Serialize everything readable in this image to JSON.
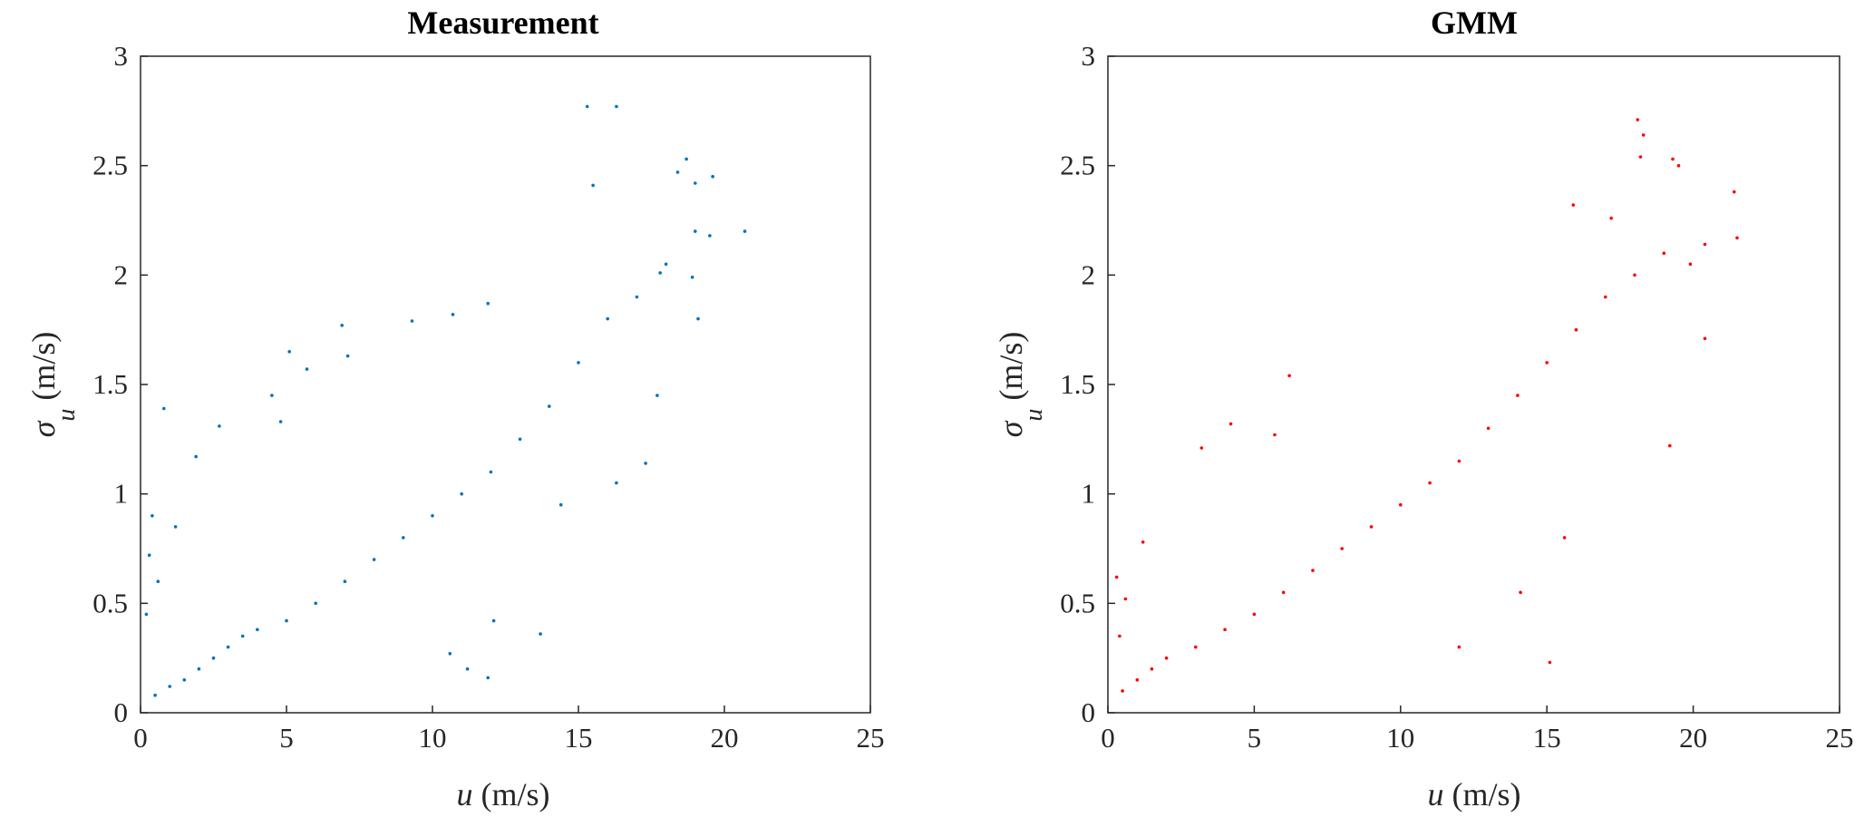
{
  "chart_data": [
    {
      "type": "scatter",
      "title": "Measurement",
      "xlabel": {
        "var": "u",
        "unit": " (m/s)"
      },
      "ylabel": {
        "var": "σ",
        "sub": "u",
        "unit": " (m/s)"
      },
      "xlim": [
        0,
        25
      ],
      "ylim": [
        0,
        3
      ],
      "xticks": [
        "0",
        "5",
        "10",
        "15",
        "20",
        "25"
      ],
      "yticks": [
        "0",
        "0.5",
        "1",
        "1.5",
        "2",
        "2.5",
        "3"
      ],
      "grid": false,
      "color": "#0072BD",
      "series": [
        {
          "points": [
            [
              0.5,
              0.08
            ],
            [
              1.0,
              0.12
            ],
            [
              1.5,
              0.15
            ],
            [
              2.0,
              0.2
            ],
            [
              2.5,
              0.25
            ],
            [
              3.0,
              0.3
            ],
            [
              3.5,
              0.35
            ],
            [
              4.0,
              0.38
            ],
            [
              5.0,
              0.42
            ],
            [
              6.0,
              0.5
            ],
            [
              7.0,
              0.6
            ],
            [
              8.0,
              0.7
            ],
            [
              9.0,
              0.8
            ],
            [
              10.0,
              0.9
            ],
            [
              11.0,
              1.0
            ],
            [
              12.0,
              1.1
            ],
            [
              13.0,
              1.25
            ],
            [
              14.0,
              1.4
            ],
            [
              15.0,
              1.6
            ],
            [
              16.0,
              1.8
            ],
            [
              17.0,
              1.9
            ],
            [
              18.0,
              2.05
            ],
            [
              19.0,
              2.2
            ],
            [
              0.8,
              1.39
            ],
            [
              2.7,
              1.31
            ],
            [
              4.5,
              1.45
            ],
            [
              5.1,
              1.65
            ],
            [
              5.7,
              1.57
            ],
            [
              7.1,
              1.63
            ],
            [
              6.9,
              1.77
            ],
            [
              9.3,
              1.79
            ],
            [
              10.7,
              1.82
            ],
            [
              11.9,
              1.87
            ],
            [
              4.8,
              1.33
            ],
            [
              1.9,
              1.17
            ],
            [
              15.3,
              2.77
            ],
            [
              16.3,
              2.77
            ],
            [
              15.5,
              2.41
            ],
            [
              18.4,
              2.47
            ],
            [
              18.7,
              2.53
            ],
            [
              19.0,
              2.42
            ],
            [
              19.6,
              2.45
            ],
            [
              20.7,
              2.2
            ],
            [
              19.5,
              2.18
            ],
            [
              17.8,
              2.01
            ],
            [
              18.9,
              1.99
            ],
            [
              13.7,
              0.36
            ],
            [
              11.2,
              0.2
            ],
            [
              11.9,
              0.16
            ],
            [
              10.6,
              0.27
            ],
            [
              12.1,
              0.42
            ],
            [
              14.4,
              0.95
            ],
            [
              16.3,
              1.05
            ],
            [
              17.3,
              1.14
            ],
            [
              17.7,
              1.45
            ],
            [
              19.1,
              1.8
            ],
            [
              0.3,
              0.72
            ],
            [
              0.6,
              0.6
            ],
            [
              0.4,
              0.9
            ],
            [
              1.2,
              0.85
            ],
            [
              0.2,
              0.45
            ]
          ]
        }
      ]
    },
    {
      "type": "scatter",
      "title": "GMM",
      "xlabel": {
        "var": "u",
        "unit": " (m/s)"
      },
      "ylabel": {
        "var": "σ",
        "sub": "u",
        "unit": " (m/s)"
      },
      "xlim": [
        0,
        25
      ],
      "ylim": [
        0,
        3
      ],
      "xticks": [
        "0",
        "5",
        "10",
        "15",
        "20",
        "25"
      ],
      "yticks": [
        "0",
        "0.5",
        "1",
        "1.5",
        "2",
        "2.5",
        "3"
      ],
      "grid": false,
      "color": "#FF0000",
      "series": [
        {
          "points": [
            [
              0.5,
              0.1
            ],
            [
              1.0,
              0.15
            ],
            [
              1.5,
              0.2
            ],
            [
              2.0,
              0.25
            ],
            [
              3.0,
              0.3
            ],
            [
              4.0,
              0.38
            ],
            [
              5.0,
              0.45
            ],
            [
              6.0,
              0.55
            ],
            [
              7.0,
              0.65
            ],
            [
              8.0,
              0.75
            ],
            [
              9.0,
              0.85
            ],
            [
              10.0,
              0.95
            ],
            [
              11.0,
              1.05
            ],
            [
              12.0,
              1.15
            ],
            [
              13.0,
              1.3
            ],
            [
              14.0,
              1.45
            ],
            [
              15.0,
              1.6
            ],
            [
              16.0,
              1.75
            ],
            [
              17.0,
              1.9
            ],
            [
              18.0,
              2.0
            ],
            [
              19.0,
              2.1
            ],
            [
              18.1,
              2.71
            ],
            [
              18.3,
              2.64
            ],
            [
              18.2,
              2.54
            ],
            [
              19.5,
              2.5
            ],
            [
              19.3,
              2.53
            ],
            [
              21.4,
              2.38
            ],
            [
              21.5,
              2.17
            ],
            [
              20.4,
              2.14
            ],
            [
              19.9,
              2.05
            ],
            [
              20.4,
              1.71
            ],
            [
              19.2,
              1.22
            ],
            [
              15.9,
              2.32
            ],
            [
              17.2,
              2.26
            ],
            [
              15.1,
              0.23
            ],
            [
              12.0,
              0.3
            ],
            [
              14.1,
              0.55
            ],
            [
              15.6,
              0.8
            ],
            [
              6.2,
              1.54
            ],
            [
              4.2,
              1.32
            ],
            [
              3.2,
              1.21
            ],
            [
              5.7,
              1.27
            ],
            [
              0.3,
              0.62
            ],
            [
              0.6,
              0.52
            ],
            [
              1.2,
              0.78
            ],
            [
              0.4,
              0.35
            ]
          ]
        }
      ]
    }
  ]
}
